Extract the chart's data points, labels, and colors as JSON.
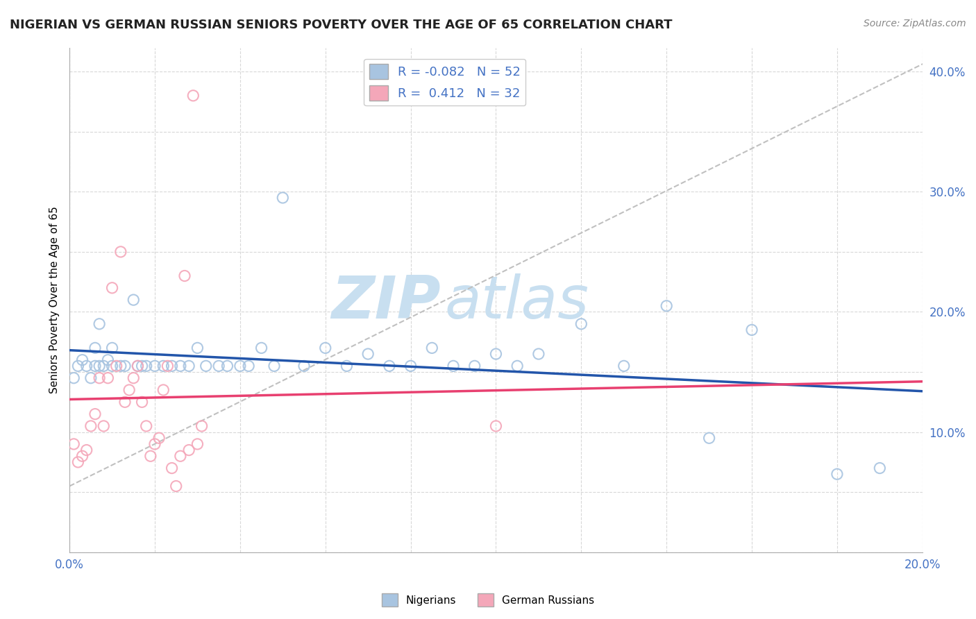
{
  "title": "NIGERIAN VS GERMAN RUSSIAN SENIORS POVERTY OVER THE AGE OF 65 CORRELATION CHART",
  "source": "Source: ZipAtlas.com",
  "ylabel": "Seniors Poverty Over the Age of 65",
  "xlim": [
    0.0,
    0.2
  ],
  "ylim": [
    0.0,
    0.42
  ],
  "xticks": [
    0.0,
    0.02,
    0.04,
    0.06,
    0.08,
    0.1,
    0.12,
    0.14,
    0.16,
    0.18,
    0.2
  ],
  "yticks": [
    0.0,
    0.05,
    0.1,
    0.15,
    0.2,
    0.25,
    0.3,
    0.35,
    0.4
  ],
  "R_nigerian": -0.082,
  "N_nigerian": 52,
  "R_german": 0.412,
  "N_german": 32,
  "color_nigerian": "#a8c4e0",
  "color_german": "#f4a7b9",
  "line_color_nigerian": "#2255aa",
  "line_color_german": "#e84070",
  "background_color": "#ffffff",
  "grid_color": "#d8d8d8",
  "watermark_color": "#c8dff0",
  "nigerian_points": [
    [
      0.001,
      0.145
    ],
    [
      0.002,
      0.155
    ],
    [
      0.003,
      0.16
    ],
    [
      0.004,
      0.155
    ],
    [
      0.005,
      0.145
    ],
    [
      0.006,
      0.155
    ],
    [
      0.006,
      0.17
    ],
    [
      0.007,
      0.19
    ],
    [
      0.007,
      0.155
    ],
    [
      0.008,
      0.155
    ],
    [
      0.009,
      0.16
    ],
    [
      0.01,
      0.17
    ],
    [
      0.01,
      0.155
    ],
    [
      0.012,
      0.155
    ],
    [
      0.013,
      0.155
    ],
    [
      0.015,
      0.21
    ],
    [
      0.016,
      0.155
    ],
    [
      0.017,
      0.155
    ],
    [
      0.018,
      0.155
    ],
    [
      0.02,
      0.155
    ],
    [
      0.022,
      0.155
    ],
    [
      0.024,
      0.155
    ],
    [
      0.026,
      0.155
    ],
    [
      0.028,
      0.155
    ],
    [
      0.03,
      0.17
    ],
    [
      0.032,
      0.155
    ],
    [
      0.035,
      0.155
    ],
    [
      0.037,
      0.155
    ],
    [
      0.04,
      0.155
    ],
    [
      0.042,
      0.155
    ],
    [
      0.045,
      0.17
    ],
    [
      0.048,
      0.155
    ],
    [
      0.05,
      0.295
    ],
    [
      0.055,
      0.155
    ],
    [
      0.06,
      0.17
    ],
    [
      0.065,
      0.155
    ],
    [
      0.07,
      0.165
    ],
    [
      0.075,
      0.155
    ],
    [
      0.08,
      0.155
    ],
    [
      0.085,
      0.17
    ],
    [
      0.09,
      0.155
    ],
    [
      0.095,
      0.155
    ],
    [
      0.1,
      0.165
    ],
    [
      0.105,
      0.155
    ],
    [
      0.11,
      0.165
    ],
    [
      0.12,
      0.19
    ],
    [
      0.13,
      0.155
    ],
    [
      0.14,
      0.205
    ],
    [
      0.15,
      0.095
    ],
    [
      0.16,
      0.185
    ],
    [
      0.18,
      0.065
    ],
    [
      0.19,
      0.07
    ]
  ],
  "german_points": [
    [
      0.001,
      0.09
    ],
    [
      0.002,
      0.075
    ],
    [
      0.003,
      0.08
    ],
    [
      0.004,
      0.085
    ],
    [
      0.005,
      0.105
    ],
    [
      0.006,
      0.115
    ],
    [
      0.007,
      0.145
    ],
    [
      0.008,
      0.105
    ],
    [
      0.009,
      0.145
    ],
    [
      0.01,
      0.22
    ],
    [
      0.011,
      0.155
    ],
    [
      0.012,
      0.25
    ],
    [
      0.013,
      0.125
    ],
    [
      0.014,
      0.135
    ],
    [
      0.015,
      0.145
    ],
    [
      0.016,
      0.155
    ],
    [
      0.017,
      0.125
    ],
    [
      0.018,
      0.105
    ],
    [
      0.019,
      0.08
    ],
    [
      0.02,
      0.09
    ],
    [
      0.021,
      0.095
    ],
    [
      0.022,
      0.135
    ],
    [
      0.023,
      0.155
    ],
    [
      0.024,
      0.07
    ],
    [
      0.025,
      0.055
    ],
    [
      0.026,
      0.08
    ],
    [
      0.027,
      0.23
    ],
    [
      0.028,
      0.085
    ],
    [
      0.029,
      0.38
    ],
    [
      0.03,
      0.09
    ],
    [
      0.031,
      0.105
    ],
    [
      0.1,
      0.105
    ]
  ],
  "dash_line": [
    [
      0.0,
      0.055
    ],
    [
      0.205,
      0.415
    ]
  ],
  "title_fontsize": 13,
  "source_fontsize": 10,
  "tick_fontsize": 12,
  "ylabel_fontsize": 11,
  "dot_size": 120
}
